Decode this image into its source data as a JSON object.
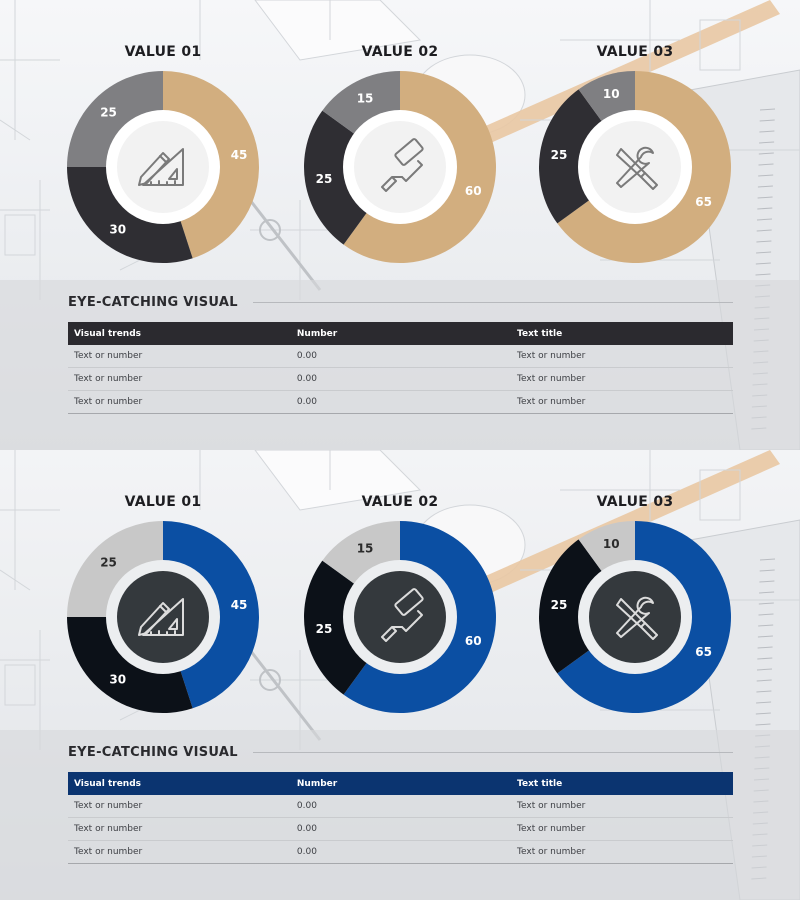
{
  "panels": [
    {
      "theme": {
        "accent": "#d2ae7f",
        "dark": "#2f2e33",
        "light": "#7f7f82",
        "center_bg": "#f2f2f2",
        "icon_color": "#7a7a7a",
        "header_bg": "#2b2a2f",
        "label_on_accent": "#ffffff",
        "label_on_dark": "#ffffff",
        "label_on_light": "#ffffff"
      },
      "chart_data": [
        {
          "type": "pie",
          "title": "VALUE 01",
          "icon": "ruler-pencil-icon",
          "slices": [
            {
              "role": "accent",
              "value": 45
            },
            {
              "role": "dark",
              "value": 30
            },
            {
              "role": "light",
              "value": 25
            }
          ]
        },
        {
          "type": "pie",
          "title": "VALUE 02",
          "icon": "paint-roller-icon",
          "slices": [
            {
              "role": "accent",
              "value": 60
            },
            {
              "role": "dark",
              "value": 25
            },
            {
              "role": "light",
              "value": 15
            }
          ]
        },
        {
          "type": "pie",
          "title": "VALUE 03",
          "icon": "wrench-screwdriver-icon",
          "slices": [
            {
              "role": "accent",
              "value": 65
            },
            {
              "role": "dark",
              "value": 25
            },
            {
              "role": "light",
              "value": 10
            }
          ]
        }
      ],
      "section_title": "EYE-CATCHING VISUAL",
      "table": {
        "headers": [
          "Visual trends",
          "Number",
          "Text title"
        ],
        "rows": [
          [
            "Text or number",
            "0.00",
            "Text or number"
          ],
          [
            "Text or number",
            "0.00",
            "Text or number"
          ],
          [
            "Text or number",
            "0.00",
            "Text or number"
          ]
        ]
      }
    },
    {
      "theme": {
        "accent": "#0b4fa3",
        "dark": "#0c1118",
        "light": "#c8c8c8",
        "center_bg": "#34393d",
        "icon_color": "#dcdcdc",
        "header_bg": "#0b3470",
        "label_on_accent": "#ffffff",
        "label_on_dark": "#ffffff",
        "label_on_light": "#2b2b2b"
      },
      "chart_data": [
        {
          "type": "pie",
          "title": "VALUE 01",
          "icon": "ruler-pencil-icon",
          "slices": [
            {
              "role": "accent",
              "value": 45
            },
            {
              "role": "dark",
              "value": 30
            },
            {
              "role": "light",
              "value": 25
            }
          ]
        },
        {
          "type": "pie",
          "title": "VALUE 02",
          "icon": "paint-roller-icon",
          "slices": [
            {
              "role": "accent",
              "value": 60
            },
            {
              "role": "dark",
              "value": 25
            },
            {
              "role": "light",
              "value": 15
            }
          ]
        },
        {
          "type": "pie",
          "title": "VALUE 03",
          "icon": "wrench-screwdriver-icon",
          "slices": [
            {
              "role": "accent",
              "value": 65
            },
            {
              "role": "dark",
              "value": 25
            },
            {
              "role": "light",
              "value": 10
            }
          ]
        }
      ],
      "section_title": "EYE-CATCHING VISUAL",
      "table": {
        "headers": [
          "Visual trends",
          "Number",
          "Text title"
        ],
        "rows": [
          [
            "Text or number",
            "0.00",
            "Text or number"
          ],
          [
            "Text or number",
            "0.00",
            "Text or number"
          ],
          [
            "Text or number",
            "0.00",
            "Text or number"
          ]
        ]
      }
    }
  ]
}
